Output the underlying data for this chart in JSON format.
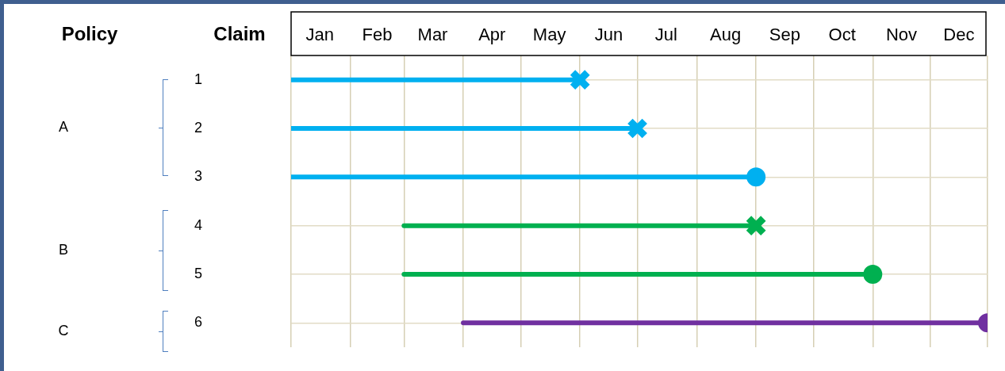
{
  "chart_data": {
    "type": "line",
    "ylabel": "Claim",
    "marker": "none",
    "grid": true,
    "annotations": [
      "Policy",
      "A",
      "B",
      "C"
    ],
    "xlim": [
      "--01-01",
      "--12-31"
    ],
    "xticks": [
      {
        "value": "--01-01",
        "label": null
      },
      {
        "value": "--01-16",
        "label": "Jan"
      },
      {
        "value": "--02-01",
        "label": null
      },
      {
        "value": "--02-15",
        "label": "Feb"
      },
      {
        "value": "--03-01",
        "label": null
      },
      {
        "value": "--03-16",
        "label": "Mar"
      },
      {
        "value": "--04-01",
        "label": null
      },
      {
        "value": "--04-16",
        "label": "Apr"
      },
      {
        "value": "--05-01",
        "label": null
      },
      {
        "value": "--05-16",
        "label": "May"
      },
      {
        "value": "--06-01",
        "label": null
      },
      {
        "value": "--06-16",
        "label": "Jun"
      },
      {
        "value": "--07-01",
        "label": null
      },
      {
        "value": "--07-16",
        "label": "Jul"
      },
      {
        "value": "--08-01",
        "label": null
      },
      {
        "value": "--08-16",
        "label": "Aug"
      },
      {
        "value": "--09-01",
        "label": null
      },
      {
        "value": "--09-16",
        "label": "Sep"
      },
      {
        "value": "--10-01",
        "label": null
      },
      {
        "value": "--10-16",
        "label": "Oct"
      },
      {
        "value": "--11-01",
        "label": null
      },
      {
        "value": "--11-16",
        "label": "Nov"
      },
      {
        "value": "--12-01",
        "label": null
      },
      {
        "value": "--12-16",
        "label": "Dec"
      },
      {
        "value": "--12-31",
        "label": null
      }
    ],
    "ylim": [
      6.5,
      0.5
    ],
    "yticks": [
      1,
      2,
      3,
      4,
      5,
      6
    ],
    "series": [
      {
        "color": "#00b0f0",
        "x": [
          "--01-01",
          "--06-01"
        ],
        "values": [
          1,
          1
        ]
      },
      {
        "color": "#00b0f0",
        "x": [
          "--01-01",
          "--07-01"
        ],
        "values": [
          2,
          2
        ]
      },
      {
        "color": "#00b0f0",
        "x": [
          "--01-01",
          "--09-01"
        ],
        "values": [
          3,
          3
        ]
      },
      {
        "color": "#00b050",
        "x": [
          "--03-01",
          "--09-01"
        ],
        "values": [
          4,
          4
        ]
      },
      {
        "color": "#00b050",
        "x": [
          "--03-01",
          "--11-01"
        ],
        "values": [
          5,
          5
        ]
      },
      {
        "color": "#7030a0",
        "x": [
          "--04-01",
          "--12-31"
        ],
        "values": [
          6,
          6
        ]
      },
      {
        "type": "scatter",
        "marker": "cross",
        "x": [
          "--06-01",
          "--07-01",
          "--09-01"
        ],
        "values": [
          1,
          2,
          4
        ],
        "colors": [
          "#00b0f0",
          "#00b0f0",
          "#00b050"
        ]
      },
      {
        "type": "scatter",
        "marker": "circle",
        "x": [
          "--09-01",
          "--11-01",
          "--12-31"
        ],
        "values": [
          3,
          5,
          6
        ],
        "colors": [
          "#00b0f0",
          "#00b050",
          "#7030a0"
        ]
      }
    ]
  }
}
